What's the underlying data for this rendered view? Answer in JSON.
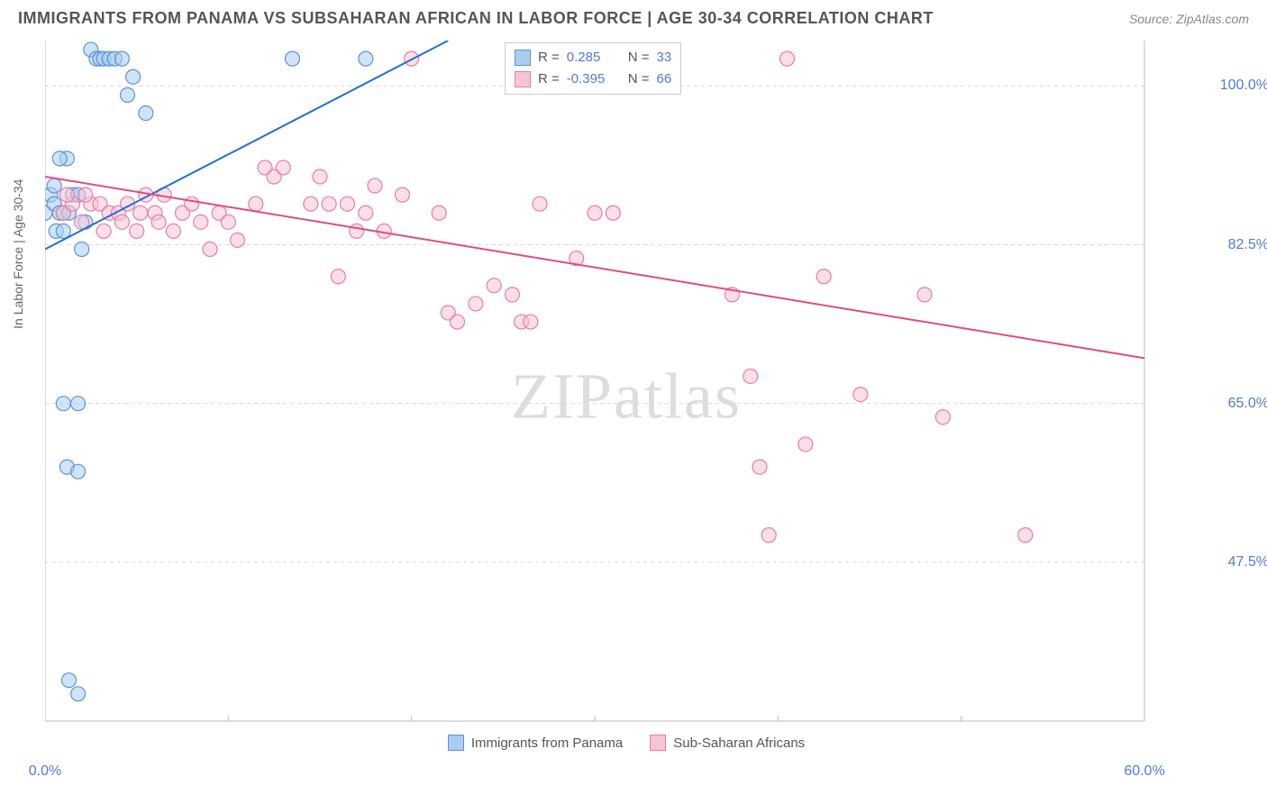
{
  "title": "IMMIGRANTS FROM PANAMA VS SUBSAHARAN AFRICAN IN LABOR FORCE | AGE 30-34 CORRELATION CHART",
  "source": "Source: ZipAtlas.com",
  "watermark_a": "ZIP",
  "watermark_b": "atlas",
  "y_axis_label": "In Labor Force | Age 30-34",
  "chart": {
    "type": "scatter",
    "x_domain": [
      0,
      60
    ],
    "y_domain": [
      30,
      105
    ],
    "x_ticks": [
      0,
      10,
      20,
      30,
      40,
      50,
      60
    ],
    "x_tick_labels": {
      "0": "0.0%",
      "60": "60.0%"
    },
    "y_ticks": [
      47.5,
      65.0,
      82.5,
      100.0
    ],
    "y_tick_labels": {
      "47.5": "47.5%",
      "65.0": "65.0%",
      "82.5": "82.5%",
      "100.0": "100.0%"
    },
    "grid_color": "#d8d8d8",
    "axis_color": "#bbbbbb",
    "label_color": "#4f7bd6",
    "background": "#ffffff"
  },
  "series": [
    {
      "id": "panama",
      "label": "Immigrants from Panama",
      "color_fill": "#a9cdf0",
      "color_stroke": "#5c93d6",
      "line_color": "#1f6fd4",
      "marker_radius": 8,
      "marker_opacity": 0.55,
      "R": "0.285",
      "N": "33",
      "trend": {
        "x1": 0,
        "y1": 82,
        "x2": 22,
        "y2": 105
      },
      "points": [
        [
          0.0,
          86
        ],
        [
          0.3,
          88
        ],
        [
          0.5,
          87
        ],
        [
          0.6,
          84
        ],
        [
          0.8,
          86
        ],
        [
          1.0,
          86
        ],
        [
          1.2,
          92
        ],
        [
          1.5,
          88
        ],
        [
          1.8,
          88
        ],
        [
          2.0,
          82
        ],
        [
          2.2,
          85
        ],
        [
          2.5,
          104
        ],
        [
          2.8,
          103
        ],
        [
          3.0,
          103
        ],
        [
          3.2,
          103
        ],
        [
          3.5,
          103
        ],
        [
          3.8,
          103
        ],
        [
          4.2,
          103
        ],
        [
          4.5,
          99
        ],
        [
          4.8,
          101
        ],
        [
          5.5,
          97
        ],
        [
          1.0,
          65
        ],
        [
          1.8,
          65
        ],
        [
          1.2,
          58
        ],
        [
          1.8,
          57.5
        ],
        [
          1.3,
          34.5
        ],
        [
          1.8,
          33
        ],
        [
          0.5,
          89
        ],
        [
          0.8,
          92
        ],
        [
          1.3,
          86
        ],
        [
          1.0,
          84
        ],
        [
          13.5,
          103
        ],
        [
          17.5,
          103
        ]
      ]
    },
    {
      "id": "subsaharan",
      "label": "Sub-Saharan Africans",
      "color_fill": "#f7c5d5",
      "color_stroke": "#e87da3",
      "line_color": "#e14b82",
      "marker_radius": 8,
      "marker_opacity": 0.55,
      "R": "-0.395",
      "N": "66",
      "trend": {
        "x1": 0,
        "y1": 90,
        "x2": 60,
        "y2": 70
      },
      "points": [
        [
          1.0,
          86
        ],
        [
          1.5,
          87
        ],
        [
          2.0,
          85
        ],
        [
          2.5,
          87
        ],
        [
          3.0,
          87
        ],
        [
          3.5,
          86
        ],
        [
          4.0,
          86
        ],
        [
          4.5,
          87
        ],
        [
          5.0,
          84
        ],
        [
          5.5,
          88
        ],
        [
          6.0,
          86
        ],
        [
          6.5,
          88
        ],
        [
          7.0,
          84
        ],
        [
          7.5,
          86
        ],
        [
          8.0,
          87
        ],
        [
          9.0,
          82
        ],
        [
          9.5,
          86
        ],
        [
          10.0,
          85
        ],
        [
          10.5,
          83
        ],
        [
          11.5,
          87
        ],
        [
          12.0,
          91
        ],
        [
          12.5,
          90
        ],
        [
          13.0,
          91
        ],
        [
          14.5,
          87
        ],
        [
          15.0,
          90
        ],
        [
          15.5,
          87
        ],
        [
          16.0,
          79
        ],
        [
          16.5,
          87
        ],
        [
          17.0,
          84
        ],
        [
          17.5,
          86
        ],
        [
          18.0,
          89
        ],
        [
          18.5,
          84
        ],
        [
          19.5,
          88
        ],
        [
          20.0,
          103
        ],
        [
          21.5,
          86
        ],
        [
          22.0,
          75
        ],
        [
          22.5,
          74
        ],
        [
          23.5,
          76
        ],
        [
          24.5,
          78
        ],
        [
          25.5,
          77
        ],
        [
          26.0,
          74
        ],
        [
          26.5,
          74
        ],
        [
          27.0,
          87
        ],
        [
          29.0,
          81
        ],
        [
          30.0,
          86
        ],
        [
          31.0,
          86
        ],
        [
          32.0,
          103
        ],
        [
          33.0,
          103
        ],
        [
          37.5,
          77
        ],
        [
          38.5,
          68
        ],
        [
          39.0,
          58
        ],
        [
          40.5,
          103
        ],
        [
          41.5,
          60.5
        ],
        [
          42.5,
          79
        ],
        [
          44.5,
          66
        ],
        [
          48.0,
          77
        ],
        [
          49.0,
          63.5
        ],
        [
          39.5,
          50.5
        ],
        [
          53.5,
          50.5
        ],
        [
          1.2,
          88
        ],
        [
          2.2,
          88
        ],
        [
          3.2,
          84
        ],
        [
          4.2,
          85
        ],
        [
          5.2,
          86
        ],
        [
          6.2,
          85
        ],
        [
          8.5,
          85
        ]
      ]
    }
  ],
  "stats_legend": {
    "R_label": "R =",
    "N_label": "N ="
  }
}
